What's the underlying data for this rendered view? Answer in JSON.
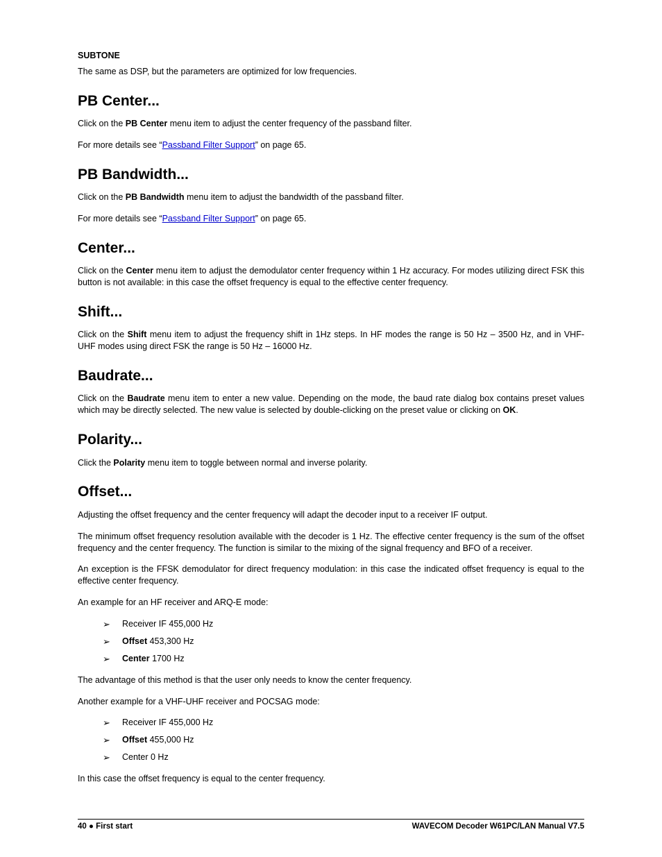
{
  "subtone": {
    "heading": "SUBTONE",
    "body": "The same as DSP, but the parameters are optimized for low frequencies."
  },
  "pb_center": {
    "heading": "PB Center...",
    "p1_pre": "Click on the ",
    "p1_b": "PB Center",
    "p1_post": " menu item to adjust the center frequency of the passband filter.",
    "p2_pre": "For more details see “",
    "p2_link": "Passband Filter Support",
    "p2_post": "” on page 65."
  },
  "pb_bandwidth": {
    "heading": "PB Bandwidth...",
    "p1_pre": "Click on the ",
    "p1_b": "PB Bandwidth",
    "p1_post": " menu item to adjust the bandwidth of the passband filter.",
    "p2_pre": "For more details see “",
    "p2_link": "Passband Filter Support",
    "p2_post": "” on page 65."
  },
  "center": {
    "heading": "Center...",
    "p1_pre": "Click on the ",
    "p1_b": "Center",
    "p1_post": " menu item to adjust the demodulator center frequency within 1 Hz accuracy. For modes utilizing direct FSK this button is not available: in this case the offset frequency is equal to the effective center frequency."
  },
  "shift": {
    "heading": "Shift...",
    "p1_pre": "Click on the ",
    "p1_b": "Shift",
    "p1_post": " menu item to adjust the frequency shift in 1Hz steps. In HF modes the range is 50 Hz – 3500 Hz, and in VHF-UHF modes using direct FSK the range is 50 Hz – 16000 Hz."
  },
  "baudrate": {
    "heading": "Baudrate...",
    "p1_pre": "Click on the ",
    "p1_b": "Baudrate",
    "p1_mid": " menu item to enter a new value. Depending on the mode, the baud rate dialog box contains preset values which may be directly selected. The new value is selected by double-clicking on the preset value or clicking on ",
    "p1_b2": "OK",
    "p1_post": "."
  },
  "polarity": {
    "heading": "Polarity...",
    "p1_pre": "Click the ",
    "p1_b": "Polarity",
    "p1_post": " menu item to toggle between normal and inverse polarity."
  },
  "offset": {
    "heading": "Offset...",
    "p1": "Adjusting the offset frequency and the center frequency will adapt the decoder input to a receiver IF output.",
    "p2": "The minimum offset frequency resolution available with the decoder is 1 Hz. The effective center frequency is the sum of the offset frequency and the center frequency. The function is similar to the mixing of the signal frequency and BFO of a receiver.",
    "p3": "An exception is the FFSK demodulator for direct frequency modulation: in this case the indicated offset frequency is equal to the effective center frequency.",
    "p4": "An example for an HF receiver and ARQ-E mode:",
    "list1": {
      "i1": "Receiver IF 455,000 Hz",
      "i2_b": "Offset",
      "i2_post": " 453,300 Hz",
      "i3_b": "Center",
      "i3_post": " 1700 Hz"
    },
    "p5": "The advantage of this method is that the user only needs to know the center frequency.",
    "p6": "Another example for a VHF-UHF receiver and POCSAG mode:",
    "list2": {
      "i1": "Receiver IF 455,000 Hz",
      "i2_b": "Offset",
      "i2_post": " 455,000 Hz",
      "i3": "Center 0 Hz"
    },
    "p7": "In this case the offset frequency is equal to the center frequency."
  },
  "footer": {
    "page_num": "40",
    "bullet": " ● ",
    "section": "First start",
    "right": "WAVECOM Decoder W61PC/LAN Manual V7.5"
  }
}
